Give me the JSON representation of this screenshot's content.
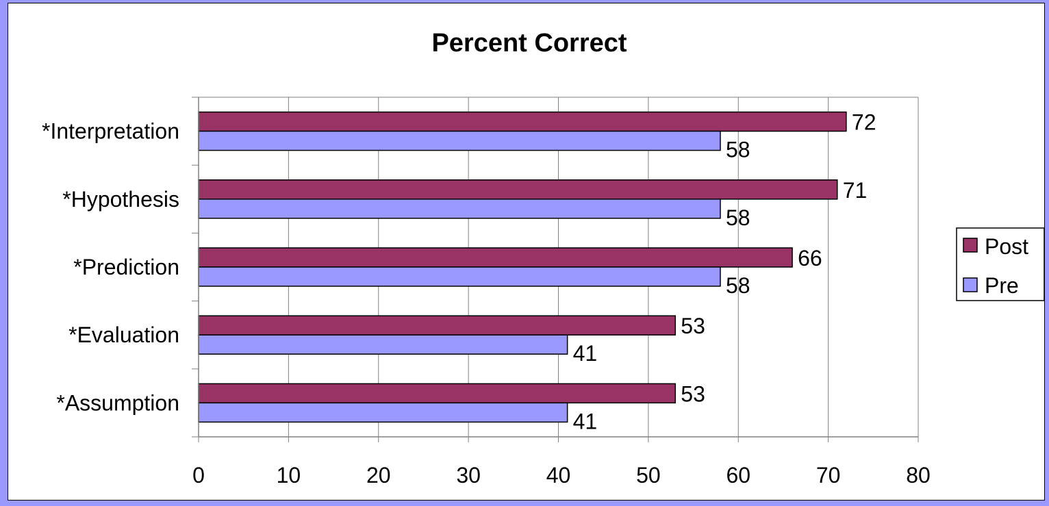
{
  "chart_data": {
    "type": "bar",
    "orientation": "horizontal",
    "title": "Percent Correct",
    "categories": [
      "*Interpretation",
      "*Hypothesis",
      "*Prediction",
      "*Evaluation",
      "*Assumption"
    ],
    "series": [
      {
        "name": "Post",
        "values": [
          72,
          71,
          66,
          53,
          53
        ],
        "color": "#993366"
      },
      {
        "name": "Pre",
        "values": [
          58,
          58,
          58,
          41,
          41
        ],
        "color": "#9999ff"
      }
    ],
    "xlim": [
      0,
      80
    ],
    "xticks": [
      0,
      10,
      20,
      30,
      40,
      50,
      60,
      70,
      80
    ],
    "grid": true,
    "legend_position": "right",
    "data_labels": true
  },
  "colors": {
    "frame": "#9999ff",
    "grid": "#808080",
    "bar_outline": "#000000"
  }
}
